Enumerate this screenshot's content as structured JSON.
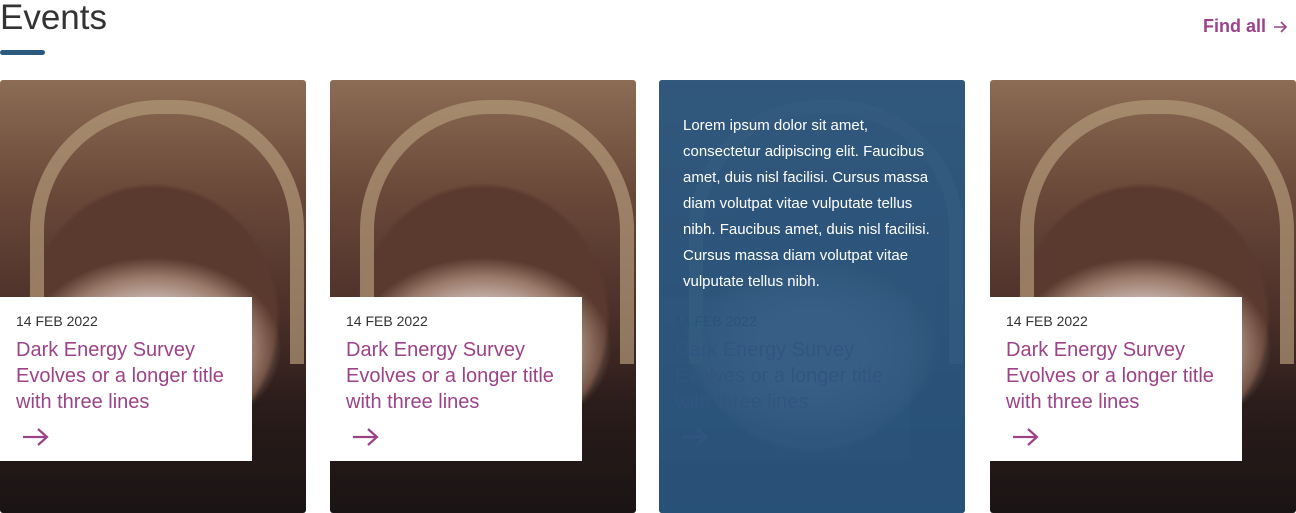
{
  "header": {
    "title": "Events",
    "link": "Find all"
  },
  "cards": [
    {
      "date": "14 FEB 2022",
      "title": "Dark Energy Survey Evolves or a longer title with three lines"
    },
    {
      "date": "14 FEB 2022",
      "title": "Dark Energy Survey Evolves or a longer title with three lines"
    },
    {
      "date": "14 FEB 2022",
      "title": "Dark Energy Survey Evolves or a longer title with three lines",
      "description": "Lorem ipsum dolor sit amet, consectetur adipiscing elit. Faucibus amet, duis nisl facilisi. Cursus massa diam volutpat vitae vulputate tellus nibh. Faucibus amet, duis nisl facilisi. Cursus massa diam volutpat vitae vulputate tellus nibh."
    },
    {
      "date": "14 FEB 2022",
      "title": "Dark Energy Survey Evolves or a longer title with three lines"
    }
  ]
}
